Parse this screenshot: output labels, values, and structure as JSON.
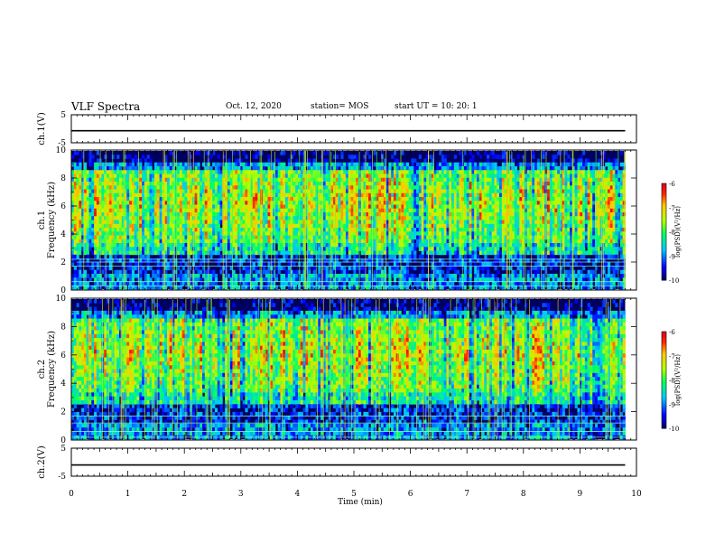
{
  "header": {
    "title": "VLF Spectra",
    "date": "Oct. 12, 2020",
    "station": "station= MOS",
    "start": "start  UT  =   10: 20: 1"
  },
  "chart_data": [
    {
      "type": "line",
      "name": "ch1-waveform",
      "ylabel": "ch.1(V)",
      "xlim": [
        0,
        10
      ],
      "ylim": [
        -5,
        5
      ],
      "yticks": [
        "5",
        "-5"
      ],
      "baseline": -0.7
    },
    {
      "type": "heatmap",
      "name": "ch1-spectrogram",
      "ylabel": "ch.1\nFrequency (kHz)",
      "xlim": [
        0,
        9.8
      ],
      "ylim": [
        0,
        10
      ],
      "yticks": [
        "0",
        "2",
        "4",
        "6",
        "8",
        "10"
      ],
      "colorbar": {
        "label": "log(PSD)(V²/Hz)",
        "range": [
          -10,
          -6
        ],
        "ticks": [
          "-6",
          "-7",
          "-8",
          "-9",
          "-10"
        ]
      },
      "bands_khz": [
        0.3,
        0.6,
        1.7,
        2.0,
        2.2
      ],
      "seed": 7
    },
    {
      "type": "heatmap",
      "name": "ch2-spectrogram",
      "ylabel": "ch.2\nFrequency (kHz)",
      "xlim": [
        0,
        9.8
      ],
      "ylim": [
        0,
        10
      ],
      "yticks": [
        "0",
        "2",
        "4",
        "6",
        "8",
        "10"
      ],
      "colorbar": {
        "label": "log(PSD)(V²/Hz)",
        "range": [
          -10,
          -6
        ],
        "ticks": [
          "-6",
          "-7",
          "-8",
          "-9",
          "-10"
        ]
      },
      "bands_khz": [
        0.2,
        0.6,
        1.2,
        1.7
      ],
      "seed": 23
    },
    {
      "type": "line",
      "name": "ch2-waveform",
      "ylabel": "ch.2(V)",
      "xlim": [
        0,
        10
      ],
      "ylim": [
        -5,
        5
      ],
      "yticks": [
        "5",
        "-5"
      ],
      "baseline": -1.0
    }
  ],
  "x_axis": {
    "label": "Time (min)",
    "ticks": [
      "0",
      "1",
      "2",
      "3",
      "4",
      "5",
      "6",
      "7",
      "8",
      "9",
      "10"
    ]
  }
}
